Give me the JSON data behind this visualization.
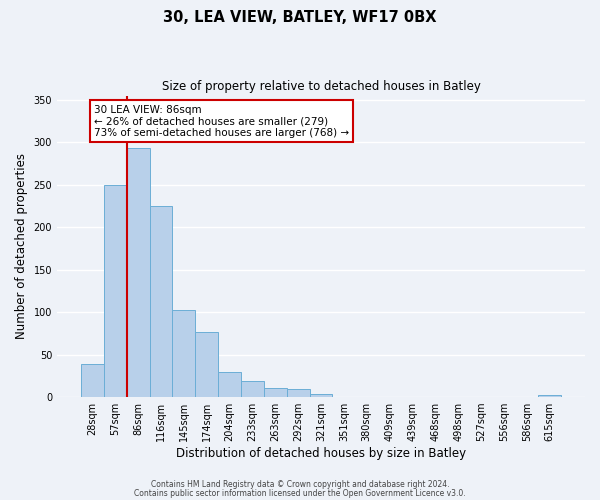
{
  "title": "30, LEA VIEW, BATLEY, WF17 0BX",
  "subtitle": "Size of property relative to detached houses in Batley",
  "xlabel": "Distribution of detached houses by size in Batley",
  "ylabel": "Number of detached properties",
  "bar_labels": [
    "28sqm",
    "57sqm",
    "86sqm",
    "116sqm",
    "145sqm",
    "174sqm",
    "204sqm",
    "233sqm",
    "263sqm",
    "292sqm",
    "321sqm",
    "351sqm",
    "380sqm",
    "409sqm",
    "439sqm",
    "468sqm",
    "498sqm",
    "527sqm",
    "556sqm",
    "586sqm",
    "615sqm"
  ],
  "bar_values": [
    39,
    250,
    293,
    225,
    103,
    77,
    29,
    19,
    11,
    10,
    4,
    0,
    0,
    0,
    0,
    0,
    0,
    0,
    0,
    0,
    2
  ],
  "bar_color": "#b8d0ea",
  "bar_edgecolor": "#6baed6",
  "vline_x": 1.5,
  "vline_color": "#cc0000",
  "annotation_title": "30 LEA VIEW: 86sqm",
  "annotation_line1": "← 26% of detached houses are smaller (279)",
  "annotation_line2": "73% of semi-detached houses are larger (768) →",
  "annotation_box_color": "#cc0000",
  "ylim": [
    0,
    355
  ],
  "yticks": [
    0,
    50,
    100,
    150,
    200,
    250,
    300,
    350
  ],
  "background_color": "#eef2f8",
  "grid_color": "#ffffff",
  "footnote1": "Contains HM Land Registry data © Crown copyright and database right 2024.",
  "footnote2": "Contains public sector information licensed under the Open Government Licence v3.0."
}
